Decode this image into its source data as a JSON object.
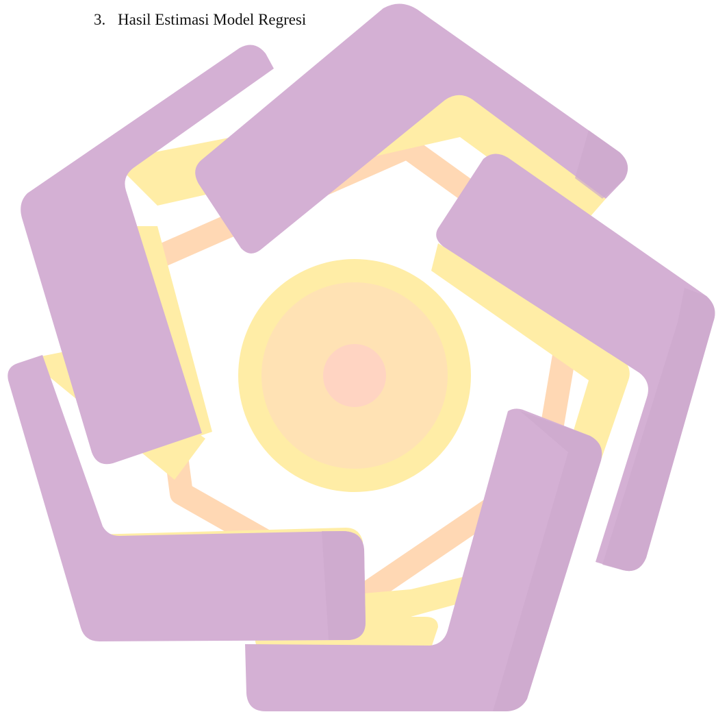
{
  "document": {
    "section": {
      "number": "3.",
      "title": "Hasil Estimasi Model Regresi"
    }
  },
  "watermark": {
    "icon": "pentagon-swirl-logo-icon",
    "colors": {
      "purple": "#D4B0D4",
      "purple_dark": "#CDA9CD",
      "yellow": "#FFEDA6",
      "yellow_light": "#FFF1B8",
      "orange": "#FFD3AE",
      "peach": "#FFD8C2",
      "pink": "#FFD0C8"
    }
  }
}
